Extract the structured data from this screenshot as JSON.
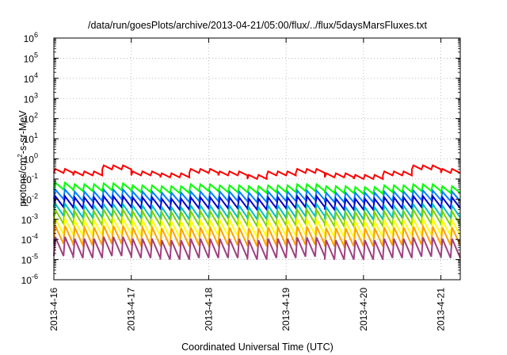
{
  "chart_data": {
    "type": "line",
    "title": "/data/run/goesPlots/archive/2013-04-21/05:00/flux/../flux/5daysMarsFluxes.txt",
    "xlabel": "Coordinated Universal Time (UTC)",
    "ylabel": "protons/cm²-s-sr-MeV",
    "ylabel_main": "protons/cm",
    "ylabel_sup": "2",
    "ylabel_rest": "-s-sr-MeV",
    "x_axis": {
      "type": "date",
      "range": [
        "2013-04-16T00:00",
        "2013-04-21T06:00"
      ],
      "ticks": [
        "2013-4-16",
        "2013-4-17",
        "2013-4-18",
        "2013-4-19",
        "2013-4-20",
        "2013-4-21"
      ]
    },
    "y_axis": {
      "scale": "log",
      "range": [
        1e-06,
        1000000.0
      ],
      "tick_bases": [
        "10",
        "10",
        "10",
        "10",
        "10",
        "10",
        "10",
        "10",
        "10",
        "10",
        "10",
        "10",
        "10"
      ],
      "tick_exps": [
        "-6",
        "-5",
        "-4",
        "-3",
        "-2",
        "-1",
        "0",
        "1",
        "2",
        "3",
        "4",
        "5",
        "6"
      ]
    },
    "grid": true,
    "legend": "none",
    "sawtooth_period_hours": 3,
    "series": [
      {
        "color": "#ff0000",
        "baseline": [
          0.2,
          0.15,
          0.3,
          0.15,
          0.12,
          0.2,
          0.15,
          0.1,
          0.15,
          0.2,
          0.12,
          0.1,
          0.15,
          0.3,
          0.2
        ],
        "spike_factor": 1.6
      },
      {
        "color": "#00ff00",
        "baseline": [
          0.03,
          0.025,
          0.028,
          0.022,
          0.02,
          0.025,
          0.022,
          0.02,
          0.022,
          0.025,
          0.02,
          0.018,
          0.022,
          0.025,
          0.02
        ],
        "spike_factor": 2.2
      },
      {
        "color": "#0080ff",
        "baseline": [
          0.01,
          0.008,
          0.01,
          0.008,
          0.007,
          0.008,
          0.008,
          0.007,
          0.008,
          0.009,
          0.007,
          0.007,
          0.008,
          0.009,
          0.008
        ],
        "spike_factor": 3.0
      },
      {
        "color": "#0000cc",
        "baseline": [
          0.004,
          0.0035,
          0.004,
          0.0035,
          0.003,
          0.0035,
          0.0035,
          0.003,
          0.0035,
          0.004,
          0.003,
          0.003,
          0.0035,
          0.004,
          0.0035
        ],
        "spike_factor": 3.5
      },
      {
        "color": "#00c0c0",
        "baseline": [
          0.0015,
          0.0012,
          0.0014,
          0.0012,
          0.001,
          0.0012,
          0.0012,
          0.001,
          0.0012,
          0.0014,
          0.001,
          0.001,
          0.0012,
          0.0014,
          0.0012
        ],
        "spike_factor": 4.0
      },
      {
        "color": "#80d000",
        "baseline": [
          0.0006,
          0.0005,
          0.0006,
          0.0005,
          0.00045,
          0.0005,
          0.0005,
          0.00045,
          0.0005,
          0.0006,
          0.00045,
          0.00045,
          0.0005,
          0.0006,
          0.0005
        ],
        "spike_factor": 5.0
      },
      {
        "color": "#ffff00",
        "baseline": [
          0.00018,
          0.00015,
          0.00018,
          0.00015,
          0.00013,
          0.00015,
          0.00015,
          0.00013,
          0.00015,
          0.00017,
          0.00013,
          0.00013,
          0.00015,
          0.00017,
          0.00015
        ],
        "spike_factor": 6.0
      },
      {
        "color": "#ffa000",
        "baseline": [
          6e-05,
          5e-05,
          6e-05,
          5e-05,
          4.5e-05,
          5e-05,
          5e-05,
          4.5e-05,
          5e-05,
          5.5e-05,
          4.5e-05,
          4.5e-05,
          5e-05,
          5.5e-05,
          5e-05
        ],
        "spike_factor": 8.0
      },
      {
        "color": "#a04080",
        "baseline": [
          1.5e-05,
          1.2e-05,
          1.5e-05,
          1.2e-05,
          1e-05,
          1.2e-05,
          1.2e-05,
          1e-05,
          1.2e-05,
          1.4e-05,
          1e-05,
          1e-05,
          1.2e-05,
          1.4e-05,
          1.2e-05
        ],
        "spike_factor": 9.0
      }
    ]
  }
}
